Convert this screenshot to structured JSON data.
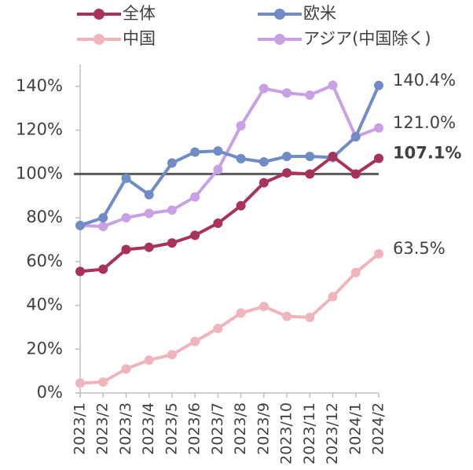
{
  "chart_data": {
    "type": "line",
    "categories": [
      "2023/1",
      "2023/2",
      "2023/3",
      "2023/4",
      "2023/5",
      "2023/6",
      "2023/7",
      "2023/8",
      "2023/9",
      "2023/10",
      "2023/11",
      "2023/12",
      "2024/1",
      "2024/2"
    ],
    "series": [
      {
        "name": "全体",
        "color": "#a8325a",
        "label_bold": true,
        "values": [
          55.5,
          56.5,
          65.5,
          66.5,
          68.5,
          72,
          77.5,
          85.5,
          96,
          100.5,
          100,
          108,
          100,
          107.1
        ],
        "value_labels": [
          null,
          null,
          null,
          null,
          null,
          null,
          null,
          null,
          null,
          null,
          null,
          null,
          null,
          "107.1%"
        ]
      },
      {
        "name": "欧米",
        "color": "#6f8cc4",
        "values": [
          76.5,
          80,
          98,
          90.5,
          105,
          110,
          110.5,
          107,
          105.5,
          108,
          108,
          107.5,
          117,
          140.4
        ],
        "value_labels": [
          null,
          null,
          null,
          null,
          null,
          null,
          null,
          null,
          null,
          null,
          null,
          null,
          null,
          "140.4%"
        ]
      },
      {
        "name": "中国",
        "color": "#f0b4bc",
        "values": [
          4.5,
          5,
          11,
          15,
          17.5,
          23.5,
          29.5,
          36.5,
          39.5,
          35,
          34.5,
          44,
          55,
          63.5
        ],
        "value_labels": [
          null,
          null,
          null,
          null,
          null,
          null,
          null,
          null,
          null,
          null,
          null,
          null,
          null,
          "63.5%"
        ]
      },
      {
        "name": "アジア(中国除く)",
        "color": "#c9a0e4",
        "values": [
          76.5,
          76,
          80,
          82,
          83.5,
          89.5,
          102,
          122,
          139,
          137,
          136,
          140.5,
          117,
          121.0
        ],
        "value_labels": [
          null,
          null,
          null,
          null,
          null,
          null,
          null,
          null,
          null,
          null,
          null,
          null,
          null,
          "121.0%"
        ]
      }
    ],
    "reference_line": 100,
    "ylim": [
      0,
      150
    ],
    "yticks": [
      {
        "value": 0,
        "label": "0%"
      },
      {
        "value": 20,
        "label": "20%"
      },
      {
        "value": 40,
        "label": "40%"
      },
      {
        "value": 60,
        "label": "60%"
      },
      {
        "value": 80,
        "label": "80%"
      },
      {
        "value": 100,
        "label": "100%"
      },
      {
        "value": 120,
        "label": "120%"
      },
      {
        "value": 140,
        "label": "140%"
      }
    ],
    "grid": false
  }
}
